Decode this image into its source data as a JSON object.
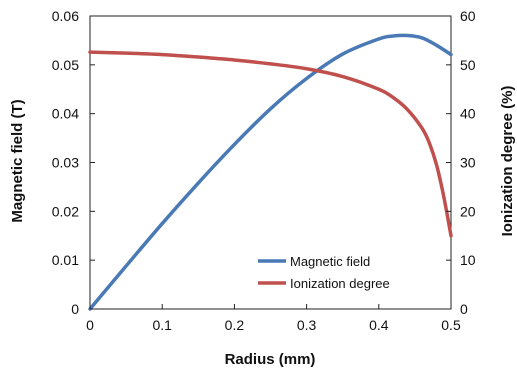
{
  "chart_data": {
    "type": "line",
    "title": "",
    "xlabel": "Radius (mm)",
    "ylabel_left": "Magnetic field (T)",
    "ylabel_right": "Ionization degree (%)",
    "xlim": [
      0,
      0.5
    ],
    "ylim_left": [
      0,
      0.06
    ],
    "ylim_right": [
      0,
      60
    ],
    "x_ticks": [
      "0",
      "0.1",
      "0.2",
      "0.3",
      "0.4",
      "0.5"
    ],
    "y_left_ticks": [
      "0",
      "0.01",
      "0.02",
      "0.03",
      "0.04",
      "0.05",
      "0.06"
    ],
    "y_right_ticks": [
      "0",
      "10",
      "20",
      "30",
      "40",
      "50",
      "60"
    ],
    "grid": false,
    "legend_position": "bottom-right",
    "series": [
      {
        "name": "Magnetic field",
        "axis": "left",
        "color": "#4a7ab5",
        "x": [
          0,
          0.05,
          0.1,
          0.15,
          0.2,
          0.25,
          0.3,
          0.35,
          0.4,
          0.42,
          0.44,
          0.46,
          0.48,
          0.5
        ],
        "y": [
          0,
          0.0088,
          0.0175,
          0.0258,
          0.0337,
          0.041,
          0.0472,
          0.0522,
          0.0553,
          0.0559,
          0.056,
          0.0555,
          0.054,
          0.0521
        ]
      },
      {
        "name": "Ionization degree",
        "axis": "right",
        "color": "#c0504d",
        "x": [
          0,
          0.05,
          0.1,
          0.15,
          0.2,
          0.25,
          0.3,
          0.35,
          0.4,
          0.42,
          0.44,
          0.46,
          0.47,
          0.48,
          0.49,
          0.5
        ],
        "y": [
          52.6,
          52.4,
          52.1,
          51.6,
          51,
          50.2,
          49.2,
          47.6,
          45,
          43.3,
          40.8,
          37,
          34,
          29.5,
          23,
          15
        ]
      }
    ]
  }
}
